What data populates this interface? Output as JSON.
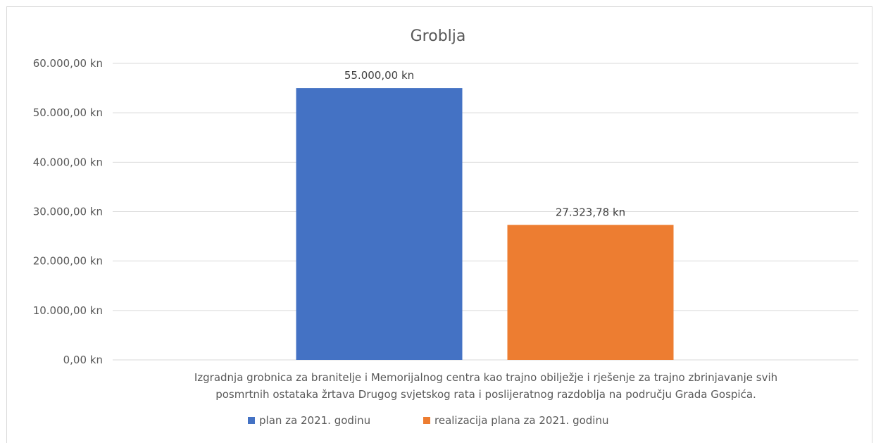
{
  "chart_data": {
    "type": "bar",
    "title": "Groblja",
    "categories": [
      "Izgradnja grobnica za branitelje i Memorijalnog centra kao trajno obilježje i rješenje za trajno zbrinjavanje svih posmrtnih ostataka žrtava Drugog svjetskog rata i poslijeratnog razdoblja na području Grada Gospića."
    ],
    "category_lines": [
      "Izgradnja grobnica za branitelje i Memorijalnog centra kao trajno obilježje i rješenje za trajno zbrinjavanje svih",
      "posmrtnih ostataka žrtava Drugog svjetskog rata i poslijeratnog razdoblja na području Grada Gospića."
    ],
    "series": [
      {
        "name": "plan za 2021. godinu",
        "values": [
          55000
        ],
        "label": "55.000,00 kn",
        "color": "#4472c4"
      },
      {
        "name": "realizacija plana za 2021. godinu",
        "values": [
          27323.78
        ],
        "label": "27.323,78 kn",
        "color": "#ed7d31"
      }
    ],
    "ylim": [
      0,
      60000
    ],
    "yticks": [
      {
        "value": 0,
        "label": "0,00 kn"
      },
      {
        "value": 10000,
        "label": "10.000,00 kn"
      },
      {
        "value": 20000,
        "label": "20.000,00 kn"
      },
      {
        "value": 30000,
        "label": "30.000,00 kn"
      },
      {
        "value": 40000,
        "label": "40.000,00 kn"
      },
      {
        "value": 50000,
        "label": "50.000,00 kn"
      },
      {
        "value": 60000,
        "label": "60.000,00 kn"
      }
    ],
    "xlabel": "",
    "ylabel": "",
    "grid": true,
    "legend_position": "bottom"
  }
}
